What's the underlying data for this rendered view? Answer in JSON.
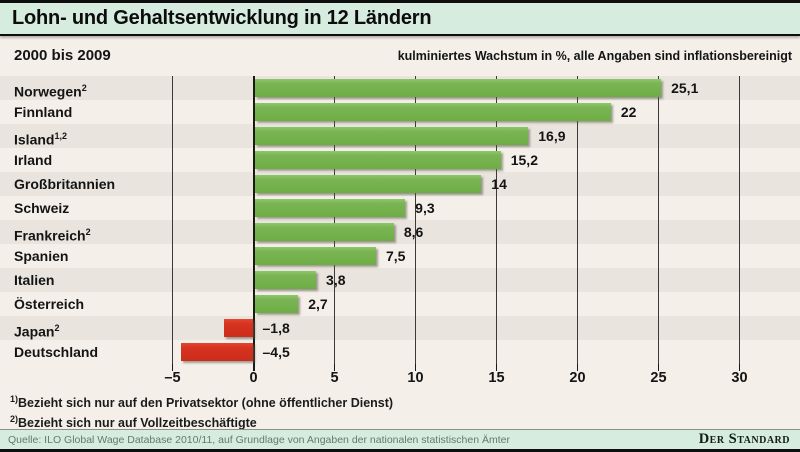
{
  "header": {
    "title": "Lohn- und Gehaltsentwicklung in 12 Ländern"
  },
  "subheader": {
    "period": "2000 bis 2009",
    "note": "kulminiertes Wachstum in %, alle Angaben sind inflationsbereinigt"
  },
  "chart_data": {
    "type": "bar",
    "orientation": "horizontal",
    "title": "Lohn- und Gehaltsentwicklung in 12 Ländern",
    "xlabel": "kulminiertes Wachstum in %",
    "categories": [
      "Norwegen",
      "Finnland",
      "Island",
      "Irland",
      "Großbritannien",
      "Schweiz",
      "Frankreich",
      "Spanien",
      "Italien",
      "Österreich",
      "Japan",
      "Deutschland"
    ],
    "category_footnote_sups": [
      "2",
      "",
      "1,2",
      "",
      "",
      "",
      "2",
      "",
      "",
      "",
      "2",
      ""
    ],
    "values": [
      25.1,
      22,
      16.9,
      15.2,
      14,
      9.3,
      8.6,
      7.5,
      3.8,
      2.7,
      -1.8,
      -4.5
    ],
    "value_labels": [
      "25,1",
      "22",
      "16,9",
      "15,2",
      "14",
      "9,3",
      "8,6",
      "7,5",
      "3,8",
      "2,7",
      "–1,8",
      "–4,5"
    ],
    "xlim": [
      -5,
      30
    ],
    "xticks": [
      -5,
      0,
      5,
      10,
      15,
      20,
      25,
      30
    ],
    "xtick_labels": [
      "–5",
      "0",
      "5",
      "10",
      "15",
      "20",
      "25",
      "30"
    ],
    "grid": true,
    "legend": "none",
    "zebra_rows": true
  },
  "footnotes": [
    {
      "marker": "1)",
      "text": "Bezieht sich nur auf den Privatsektor (ohne öffentlicher Dienst)"
    },
    {
      "marker": "2)",
      "text": "Bezieht sich nur auf Vollzeitbeschäftigte"
    }
  ],
  "footer": {
    "source": "Quelle: ILO Global Wage Database 2010/11, auf Grundlage von Angaben der nationalen statistischen Ämter",
    "brand": "Der Standard"
  },
  "colors": {
    "positive_bar": "#76b44e",
    "negative_bar": "#d63220",
    "mint_strip": "#d5ecdf",
    "background": "#f4f0e9",
    "row_stripe": "#e9e5de"
  }
}
